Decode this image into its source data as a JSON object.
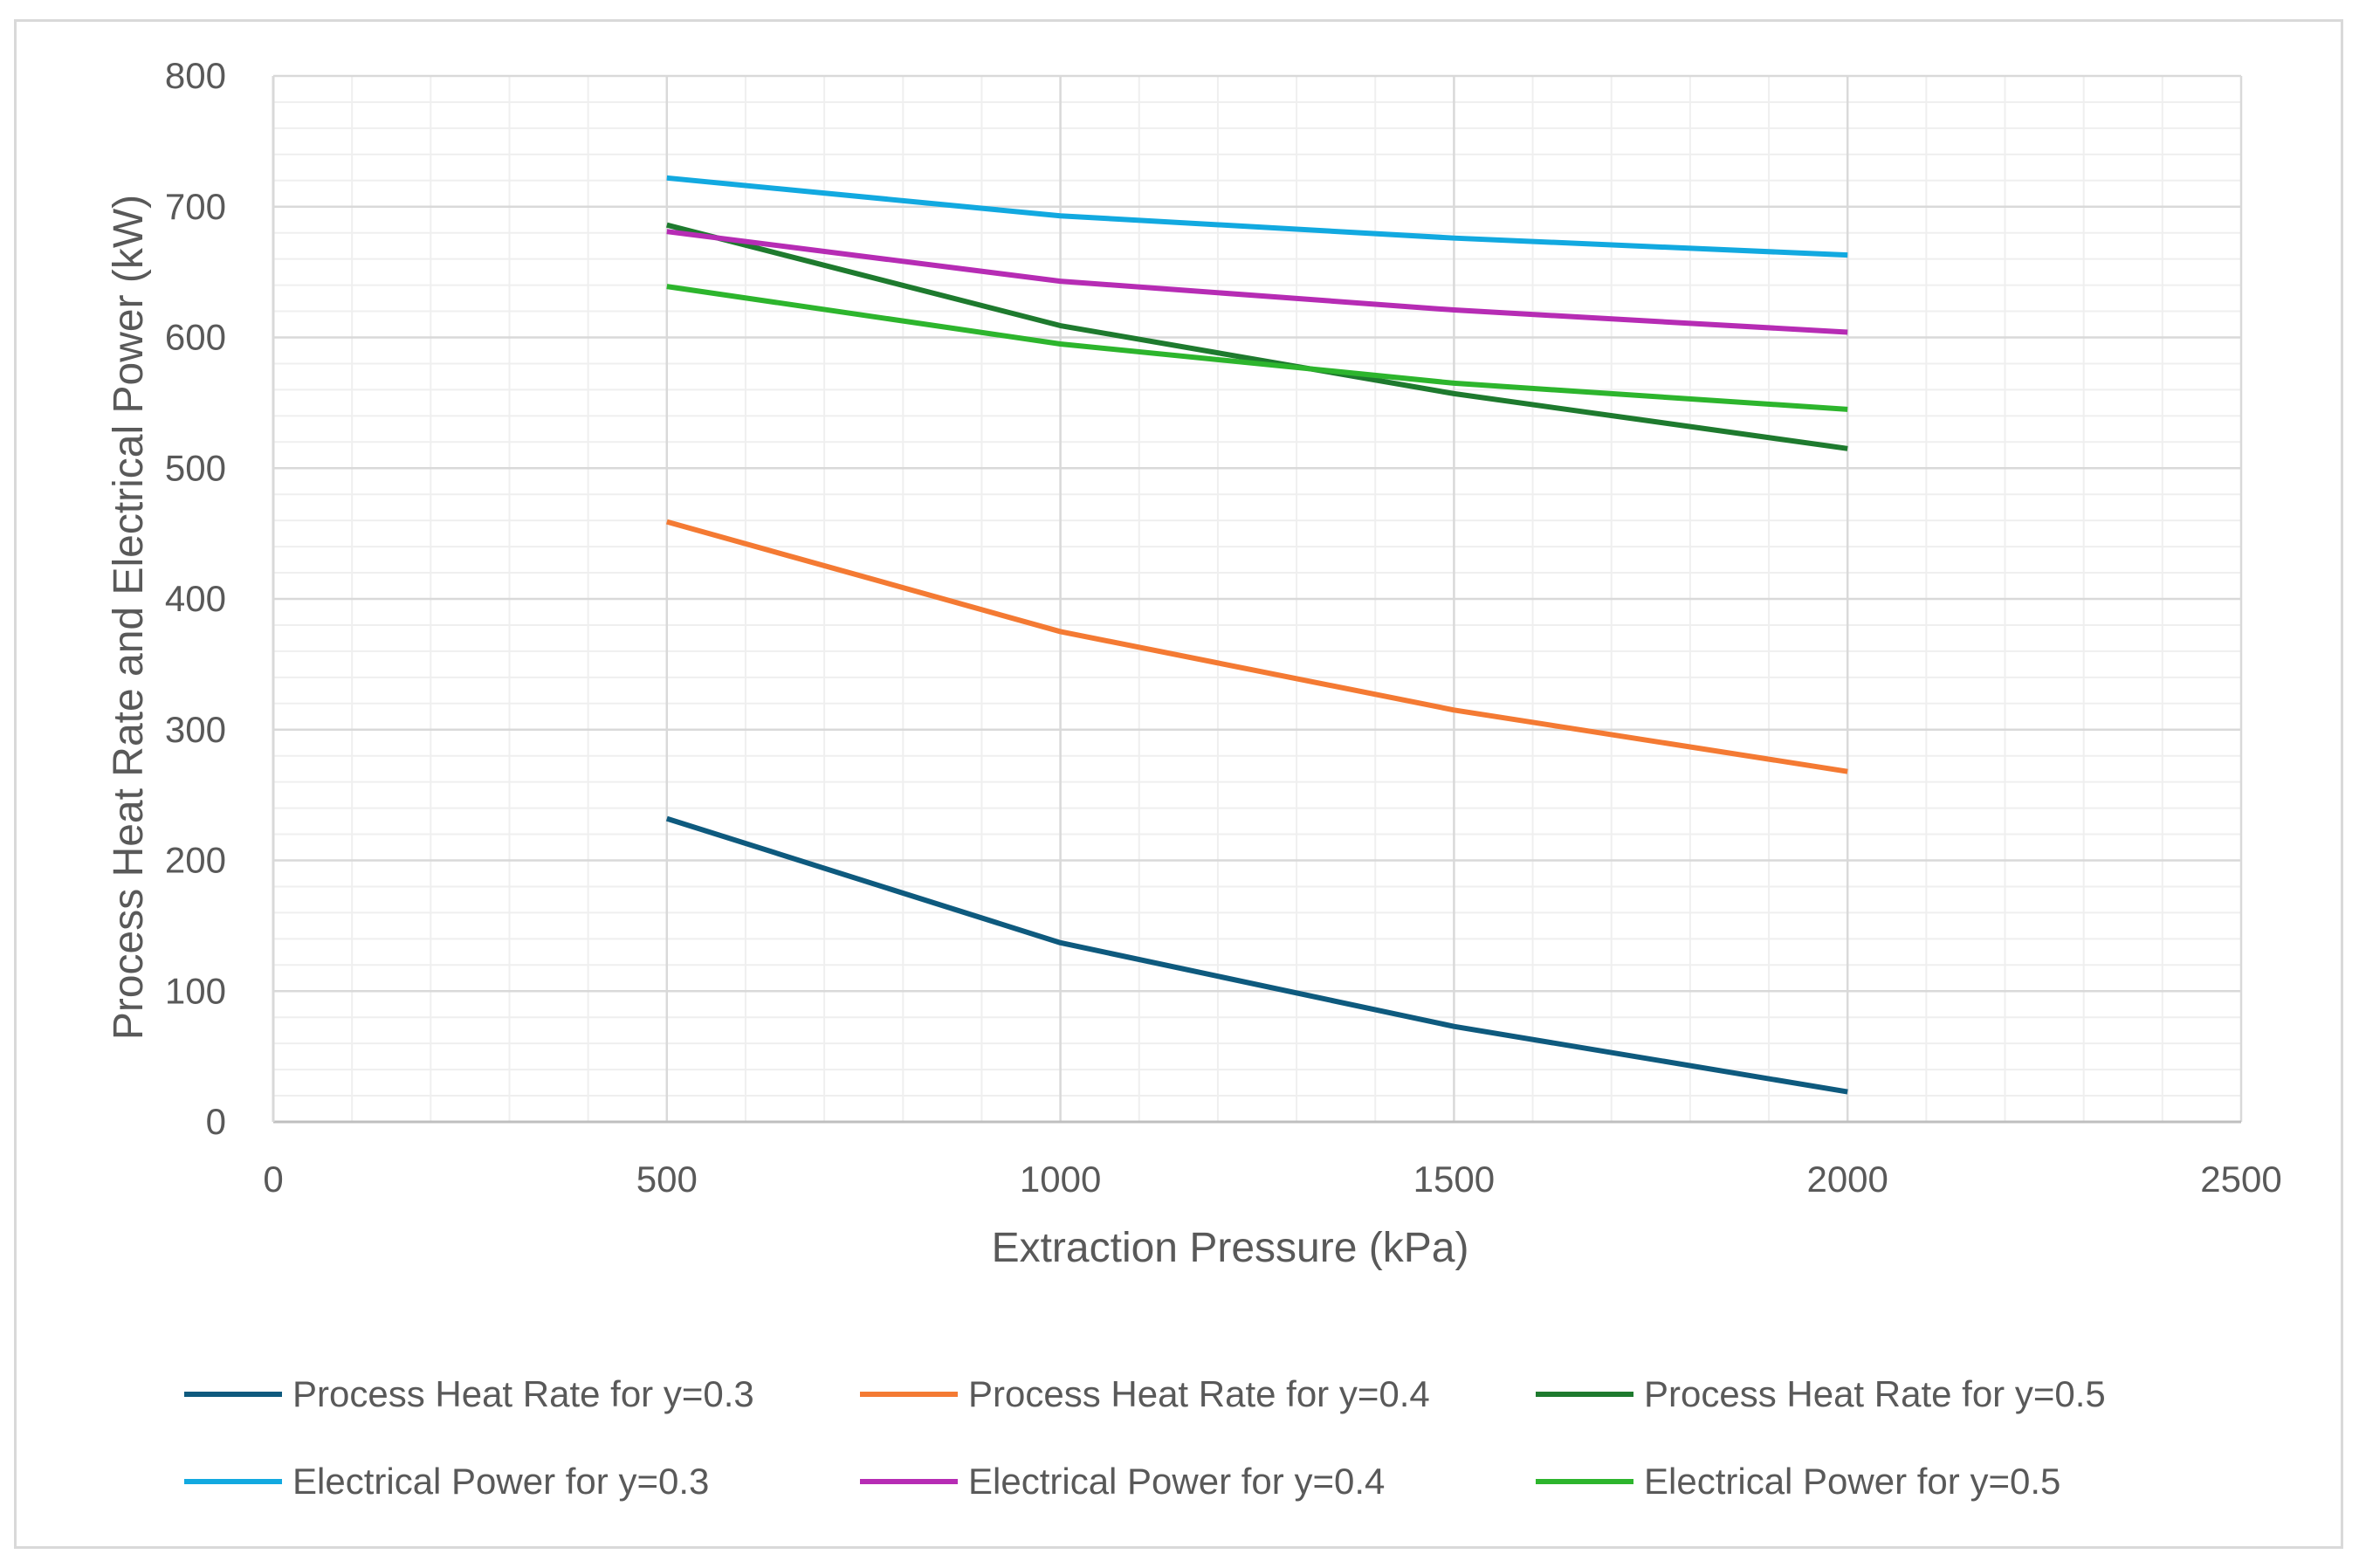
{
  "chart_data": {
    "type": "line",
    "title": "",
    "xlabel": "Extraction Pressure (kPa)",
    "ylabel": "Process Heat Rate and Electrical Power (kW)",
    "xlim": [
      0,
      2500
    ],
    "ylim": [
      0,
      800
    ],
    "x_ticks": [
      0,
      500,
      1000,
      1500,
      2000,
      2500
    ],
    "x_tick_labels": [
      "0",
      "500",
      "1000",
      "1500",
      "2000",
      "2500"
    ],
    "y_ticks": [
      0,
      100,
      200,
      300,
      400,
      500,
      600,
      700,
      800
    ],
    "y_tick_labels": [
      "0",
      "100",
      "200",
      "300",
      "400",
      "500",
      "600",
      "700",
      "800"
    ],
    "grid": "major and minor",
    "legend_position": "bottom",
    "series": [
      {
        "name": "Process Heat Rate for y=0.3",
        "color": "#0e5a7e",
        "x": [
          500,
          1000,
          1500,
          2000
        ],
        "values": [
          232,
          137,
          73,
          23
        ]
      },
      {
        "name": "Process Heat Rate for y=0.4",
        "color": "#f47a33",
        "x": [
          500,
          1000,
          1500,
          2000
        ],
        "values": [
          459,
          375,
          315,
          268
        ]
      },
      {
        "name": "Process Heat Rate for y=0.5",
        "color": "#1e7a2e",
        "x": [
          500,
          1000,
          1500,
          2000
        ],
        "values": [
          686,
          609,
          557,
          515
        ]
      },
      {
        "name": "Electrical Power for y=0.3",
        "color": "#12a9e0",
        "x": [
          500,
          1000,
          1500,
          2000
        ],
        "values": [
          722,
          693,
          676,
          663
        ]
      },
      {
        "name": "Electrical Power for y=0.4",
        "color": "#b62cb4",
        "x": [
          500,
          1000,
          1500,
          2000
        ],
        "values": [
          681,
          643,
          621,
          604
        ]
      },
      {
        "name": "Electrical Power for y=0.5",
        "color": "#2db52d",
        "x": [
          500,
          1000,
          1500,
          2000
        ],
        "values": [
          639,
          595,
          565,
          545
        ]
      }
    ]
  }
}
